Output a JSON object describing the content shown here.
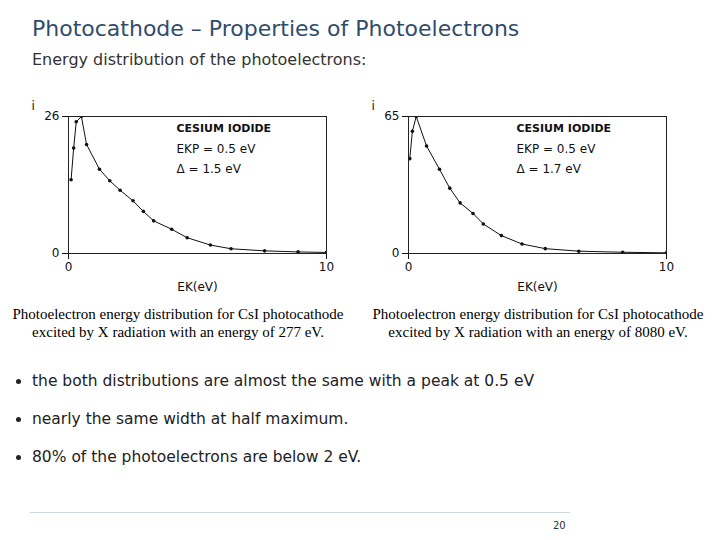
{
  "title": "Photocathode – Properties of Photoelectrons",
  "subtitle": "Energy distribution of the photoelectrons:",
  "bullets": [
    "the both distributions are almost the same with a peak at 0.5 eV",
    "nearly the same width at half maximum.",
    "80% of the photoelectrons are below 2 eV."
  ],
  "page_number": "20",
  "chart_data": [
    {
      "type": "line",
      "marker": "circle",
      "line_style": "solid",
      "color": "#111111",
      "annotations": [
        "CESIUM IODIDE",
        "EKP = 0.5 eV",
        "Δ = 1.5 eV"
      ],
      "caption": "Photoelectron energy distribution for CsI photocathode excited by X radiation with an energy of 277 eV.",
      "xlabel": "EK(eV)",
      "ylabel": "i",
      "x": [
        0.1,
        0.2,
        0.3,
        0.5,
        0.7,
        1.2,
        1.6,
        2.0,
        2.5,
        2.9,
        3.3,
        4.0,
        4.6,
        5.5,
        6.3,
        7.6,
        8.9,
        10
      ],
      "values": [
        14,
        20,
        25,
        26,
        20.7,
        16,
        13.8,
        12,
        10,
        8,
        6.2,
        4.6,
        3,
        1.6,
        0.9,
        0.5,
        0.3,
        0.2
      ],
      "xlim": [
        0,
        10
      ],
      "xticks": [
        0,
        10
      ],
      "ylim": [
        0,
        26
      ],
      "yticks": [
        0,
        26
      ],
      "grid": false
    },
    {
      "type": "line",
      "marker": "circle",
      "line_style": "solid",
      "color": "#111111",
      "annotations": [
        "CESIUM IODIDE",
        "EKP = 0.5 eV",
        "Δ = 1.7 eV"
      ],
      "caption": "Photoelectron energy distribution for CsI photocathode excited by X radiation with an energy of 8080 eV.",
      "xlabel": "EK(eV)",
      "ylabel": "i",
      "x": [
        0.05,
        0.15,
        0.3,
        0.7,
        1.2,
        1.6,
        2.0,
        2.5,
        2.9,
        3.6,
        4.4,
        5.3,
        6.6,
        8.3,
        10
      ],
      "values": [
        45,
        58,
        65,
        51,
        40,
        31,
        24,
        19,
        14,
        8.5,
        4.5,
        2.3,
        1.1,
        0.6,
        0.3
      ],
      "xlim": [
        0,
        10
      ],
      "xticks": [
        0,
        10
      ],
      "ylim": [
        0,
        65
      ],
      "yticks": [
        0,
        65
      ],
      "grid": false
    }
  ]
}
